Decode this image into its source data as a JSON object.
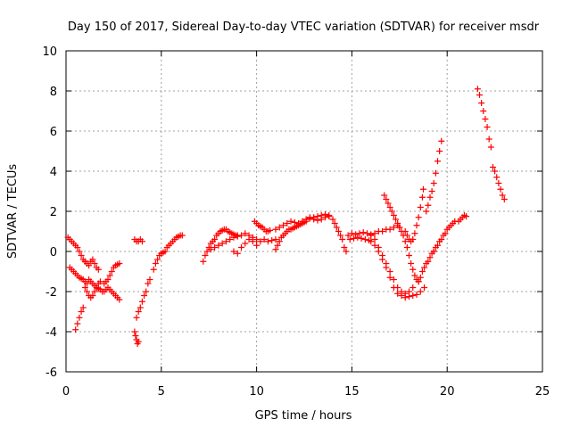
{
  "chart_data": {
    "type": "scatter",
    "title": "Day 150 of 2017, Sidereal Day-to-day VTEC variation (SDTVAR) for receiver msdr",
    "xlabel": "GPS time / hours",
    "ylabel": "SDTVAR / TECUs",
    "xlim": [
      0,
      25
    ],
    "ylim": [
      -6,
      10
    ],
    "xticks": [
      "0",
      "5",
      "10",
      "15",
      "20",
      "25"
    ],
    "yticks": [
      "-6",
      "-4",
      "-2",
      "0",
      "2",
      "4",
      "6",
      "8",
      "10"
    ],
    "grid": true,
    "marker": "plus",
    "color": "#ff0000",
    "segments": [
      [
        [
          0.1,
          0.7
        ],
        [
          0.2,
          0.6
        ],
        [
          0.3,
          0.5
        ],
        [
          0.4,
          0.4
        ],
        [
          0.5,
          0.3
        ],
        [
          0.6,
          0.2
        ],
        [
          0.7,
          0.0
        ],
        [
          0.8,
          -0.2
        ],
        [
          0.9,
          -0.4
        ],
        [
          1.0,
          -0.5
        ]
      ],
      [
        [
          0.2,
          -0.8
        ],
        [
          0.3,
          -0.9
        ],
        [
          0.4,
          -1.0
        ],
        [
          0.5,
          -1.1
        ],
        [
          0.6,
          -1.2
        ],
        [
          0.7,
          -1.3
        ],
        [
          0.8,
          -1.35
        ],
        [
          0.9,
          -1.4
        ],
        [
          1.0,
          -1.5
        ],
        [
          1.1,
          -1.6
        ]
      ],
      [
        [
          0.5,
          -3.9
        ],
        [
          0.6,
          -3.6
        ],
        [
          0.7,
          -3.3
        ],
        [
          0.8,
          -3.0
        ],
        [
          0.9,
          -2.8
        ]
      ],
      [
        [
          1.0,
          -1.8
        ],
        [
          1.1,
          -2.0
        ],
        [
          1.2,
          -2.2
        ],
        [
          1.3,
          -2.3
        ],
        [
          1.4,
          -2.2
        ],
        [
          1.5,
          -2.0
        ],
        [
          1.6,
          -1.8
        ],
        [
          1.7,
          -1.6
        ],
        [
          1.8,
          -1.5
        ]
      ],
      [
        [
          1.0,
          -0.5
        ],
        [
          1.1,
          -0.6
        ],
        [
          1.2,
          -0.7
        ],
        [
          1.3,
          -0.5
        ],
        [
          1.4,
          -0.4
        ],
        [
          1.5,
          -0.6
        ],
        [
          1.6,
          -0.8
        ],
        [
          1.7,
          -0.9
        ]
      ],
      [
        [
          1.2,
          -1.4
        ],
        [
          1.3,
          -1.5
        ],
        [
          1.4,
          -1.6
        ],
        [
          1.5,
          -1.7
        ],
        [
          1.6,
          -1.8
        ],
        [
          1.7,
          -1.85
        ],
        [
          1.8,
          -1.9
        ],
        [
          1.9,
          -2.0
        ]
      ],
      [
        [
          2.0,
          -1.6
        ],
        [
          2.1,
          -1.5
        ],
        [
          2.2,
          -1.4
        ],
        [
          2.3,
          -1.2
        ],
        [
          2.4,
          -1.0
        ],
        [
          2.5,
          -0.8
        ],
        [
          2.6,
          -0.7
        ],
        [
          2.7,
          -0.65
        ],
        [
          2.8,
          -0.6
        ]
      ],
      [
        [
          2.0,
          -2.0
        ],
        [
          2.1,
          -1.9
        ],
        [
          2.2,
          -1.8
        ],
        [
          2.3,
          -1.9
        ],
        [
          2.4,
          -2.0
        ],
        [
          2.5,
          -2.1
        ],
        [
          2.6,
          -2.2
        ],
        [
          2.7,
          -2.3
        ],
        [
          2.8,
          -2.4
        ]
      ],
      [
        [
          3.6,
          -4.0
        ],
        [
          3.65,
          -4.2
        ],
        [
          3.7,
          -4.4
        ],
        [
          3.75,
          -4.6
        ],
        [
          3.8,
          -4.5
        ]
      ],
      [
        [
          3.6,
          0.6
        ],
        [
          3.7,
          0.5
        ],
        [
          3.8,
          0.5
        ],
        [
          3.9,
          0.6
        ],
        [
          4.0,
          0.5
        ]
      ],
      [
        [
          3.7,
          -3.3
        ],
        [
          3.8,
          -3.0
        ],
        [
          3.9,
          -2.8
        ],
        [
          4.0,
          -2.5
        ],
        [
          4.1,
          -2.2
        ],
        [
          4.2,
          -2.0
        ],
        [
          4.3,
          -1.6
        ],
        [
          4.4,
          -1.4
        ]
      ],
      [
        [
          4.6,
          -0.9
        ],
        [
          4.7,
          -0.6
        ],
        [
          4.8,
          -0.4
        ],
        [
          4.9,
          -0.2
        ],
        [
          5.0,
          -0.1
        ],
        [
          5.1,
          -0.05
        ],
        [
          5.2,
          0.0
        ],
        [
          5.3,
          0.2
        ],
        [
          5.4,
          0.3
        ],
        [
          5.5,
          0.4
        ],
        [
          5.6,
          0.5
        ],
        [
          5.7,
          0.6
        ],
        [
          5.8,
          0.7
        ],
        [
          5.9,
          0.75
        ],
        [
          6.0,
          0.8
        ],
        [
          6.1,
          0.8
        ]
      ],
      [
        [
          7.2,
          -0.5
        ],
        [
          7.3,
          -0.2
        ],
        [
          7.4,
          0.0
        ],
        [
          7.5,
          0.2
        ],
        [
          7.6,
          0.4
        ],
        [
          7.7,
          0.5
        ],
        [
          7.8,
          0.6
        ],
        [
          7.9,
          0.8
        ],
        [
          8.0,
          0.9
        ],
        [
          8.1,
          1.0
        ],
        [
          8.2,
          1.05
        ],
        [
          8.3,
          1.1
        ],
        [
          8.4,
          1.1
        ],
        [
          8.5,
          1.0
        ],
        [
          8.6,
          0.95
        ],
        [
          8.7,
          0.9
        ],
        [
          8.8,
          0.85
        ],
        [
          8.9,
          0.8
        ],
        [
          9.0,
          0.8
        ]
      ],
      [
        [
          7.6,
          0.1
        ],
        [
          7.8,
          0.2
        ],
        [
          8.0,
          0.3
        ],
        [
          8.2,
          0.4
        ],
        [
          8.4,
          0.5
        ],
        [
          8.6,
          0.6
        ],
        [
          8.8,
          0.7
        ],
        [
          9.0,
          0.75
        ],
        [
          9.2,
          0.8
        ],
        [
          9.4,
          0.9
        ],
        [
          9.6,
          0.8
        ],
        [
          9.8,
          0.7
        ],
        [
          10.0,
          0.6
        ],
        [
          10.2,
          0.5
        ],
        [
          10.4,
          0.6
        ],
        [
          10.6,
          0.5
        ],
        [
          10.8,
          0.55
        ],
        [
          11.0,
          0.6
        ]
      ],
      [
        [
          8.8,
          0.0
        ],
        [
          9.0,
          -0.1
        ],
        [
          9.2,
          0.2
        ],
        [
          9.4,
          0.4
        ],
        [
          9.6,
          0.6
        ],
        [
          9.8,
          0.5
        ],
        [
          10.0,
          0.3
        ]
      ],
      [
        [
          9.9,
          1.5
        ],
        [
          10.0,
          1.4
        ],
        [
          10.1,
          1.3
        ],
        [
          10.2,
          1.25
        ],
        [
          10.3,
          1.2
        ],
        [
          10.4,
          1.1
        ],
        [
          10.5,
          1.0
        ],
        [
          10.6,
          1.0
        ],
        [
          10.7,
          1.05
        ]
      ],
      [
        [
          11.0,
          0.1
        ],
        [
          11.1,
          0.3
        ],
        [
          11.2,
          0.5
        ],
        [
          11.3,
          0.7
        ],
        [
          11.4,
          0.8
        ],
        [
          11.5,
          0.9
        ],
        [
          11.6,
          1.0
        ],
        [
          11.7,
          1.1
        ],
        [
          11.8,
          1.1
        ],
        [
          11.9,
          1.15
        ],
        [
          12.0,
          1.2
        ],
        [
          12.1,
          1.25
        ],
        [
          12.2,
          1.3
        ],
        [
          12.3,
          1.35
        ],
        [
          12.4,
          1.4
        ],
        [
          12.5,
          1.45
        ],
        [
          12.6,
          1.5
        ]
      ],
      [
        [
          11.0,
          1.1
        ],
        [
          11.2,
          1.2
        ],
        [
          11.4,
          1.3
        ],
        [
          11.6,
          1.4
        ],
        [
          11.8,
          1.5
        ],
        [
          12.0,
          1.45
        ],
        [
          12.2,
          1.4
        ],
        [
          12.4,
          1.5
        ],
        [
          12.6,
          1.6
        ],
        [
          12.8,
          1.7
        ],
        [
          13.0,
          1.7
        ],
        [
          13.2,
          1.75
        ],
        [
          13.4,
          1.8
        ],
        [
          13.6,
          1.85
        ],
        [
          13.8,
          1.8
        ],
        [
          14.0,
          1.6
        ],
        [
          14.1,
          1.4
        ],
        [
          14.2,
          1.2
        ],
        [
          14.3,
          1.0
        ],
        [
          14.4,
          0.8
        ],
        [
          14.5,
          0.6
        ],
        [
          14.6,
          0.2
        ],
        [
          14.7,
          0.0
        ]
      ],
      [
        [
          12.6,
          1.6
        ],
        [
          12.8,
          1.65
        ],
        [
          13.0,
          1.6
        ],
        [
          13.2,
          1.55
        ],
        [
          13.4,
          1.6
        ],
        [
          13.6,
          1.7
        ],
        [
          13.8,
          1.75
        ]
      ],
      [
        [
          14.8,
          0.8
        ],
        [
          15.0,
          0.9
        ],
        [
          15.2,
          0.85
        ],
        [
          15.4,
          0.9
        ],
        [
          15.6,
          0.95
        ],
        [
          15.8,
          0.9
        ],
        [
          16.0,
          0.85
        ],
        [
          16.2,
          0.9
        ],
        [
          16.4,
          1.0
        ],
        [
          16.6,
          1.0
        ],
        [
          16.8,
          1.1
        ],
        [
          17.0,
          1.1
        ],
        [
          17.2,
          1.2
        ],
        [
          17.4,
          1.3
        ],
        [
          17.5,
          1.2
        ]
      ],
      [
        [
          14.9,
          0.6
        ],
        [
          15.1,
          0.65
        ],
        [
          15.3,
          0.7
        ],
        [
          15.5,
          0.65
        ],
        [
          15.7,
          0.6
        ],
        [
          15.9,
          0.55
        ],
        [
          16.0,
          0.5
        ],
        [
          16.2,
          0.3
        ],
        [
          16.4,
          0.0
        ],
        [
          16.6,
          -0.4
        ],
        [
          16.8,
          -0.8
        ],
        [
          17.0,
          -1.3
        ],
        [
          17.2,
          -1.8
        ],
        [
          17.4,
          -2.1
        ],
        [
          17.6,
          -2.2
        ],
        [
          17.8,
          -2.3
        ],
        [
          18.0,
          -2.25
        ],
        [
          18.2,
          -2.2
        ],
        [
          18.4,
          -2.15
        ],
        [
          18.6,
          -2.0
        ],
        [
          18.8,
          -1.8
        ]
      ],
      [
        [
          16.0,
          0.8
        ],
        [
          16.2,
          0.6
        ],
        [
          16.4,
          0.2
        ],
        [
          16.6,
          -0.2
        ],
        [
          16.8,
          -0.6
        ],
        [
          17.0,
          -1.0
        ],
        [
          17.2,
          -1.4
        ],
        [
          17.4,
          -1.8
        ],
        [
          17.6,
          -2.0
        ],
        [
          17.8,
          -2.1
        ],
        [
          18.0,
          -2.0
        ],
        [
          18.2,
          -1.8
        ]
      ],
      [
        [
          16.7,
          2.8
        ],
        [
          16.8,
          2.6
        ],
        [
          16.9,
          2.4
        ],
        [
          17.0,
          2.2
        ],
        [
          17.1,
          2.0
        ],
        [
          17.2,
          1.8
        ],
        [
          17.3,
          1.6
        ],
        [
          17.4,
          1.4
        ],
        [
          17.5,
          1.2
        ],
        [
          17.6,
          1.0
        ],
        [
          17.7,
          0.8
        ],
        [
          17.8,
          0.5
        ],
        [
          17.9,
          0.2
        ],
        [
          18.0,
          -0.2
        ],
        [
          18.1,
          -0.6
        ],
        [
          18.2,
          -0.9
        ],
        [
          18.3,
          -1.2
        ],
        [
          18.4,
          -1.4
        ],
        [
          18.5,
          -1.5
        ]
      ],
      [
        [
          17.8,
          1.0
        ],
        [
          17.9,
          0.8
        ],
        [
          18.0,
          0.6
        ],
        [
          18.1,
          0.5
        ],
        [
          18.2,
          0.6
        ],
        [
          18.3,
          0.9
        ],
        [
          18.4,
          1.3
        ],
        [
          18.5,
          1.7
        ],
        [
          18.6,
          2.2
        ],
        [
          18.7,
          2.7
        ],
        [
          18.75,
          3.1
        ]
      ],
      [
        [
          18.5,
          -1.5
        ],
        [
          18.6,
          -1.3
        ],
        [
          18.7,
          -1.0
        ],
        [
          18.8,
          -0.8
        ],
        [
          18.9,
          -0.6
        ],
        [
          19.0,
          -0.5
        ],
        [
          19.1,
          -0.3
        ],
        [
          19.2,
          -0.1
        ],
        [
          19.3,
          0.0
        ]
      ],
      [
        [
          18.9,
          2.0
        ],
        [
          19.0,
          2.3
        ],
        [
          19.1,
          2.7
        ],
        [
          19.2,
          3.0
        ],
        [
          19.3,
          3.4
        ],
        [
          19.4,
          3.9
        ],
        [
          19.5,
          4.5
        ],
        [
          19.6,
          5.0
        ],
        [
          19.7,
          5.5
        ]
      ],
      [
        [
          19.3,
          0.0
        ],
        [
          19.4,
          0.2
        ],
        [
          19.5,
          0.3
        ],
        [
          19.6,
          0.5
        ],
        [
          19.7,
          0.6
        ],
        [
          19.8,
          0.8
        ],
        [
          19.9,
          0.9
        ],
        [
          20.0,
          1.1
        ],
        [
          20.1,
          1.2
        ],
        [
          20.2,
          1.3
        ],
        [
          20.3,
          1.4
        ],
        [
          20.4,
          1.5
        ]
      ],
      [
        [
          20.6,
          1.5
        ],
        [
          20.7,
          1.6
        ],
        [
          20.8,
          1.7
        ],
        [
          20.9,
          1.8
        ],
        [
          21.0,
          1.75
        ]
      ],
      [
        [
          21.6,
          8.1
        ],
        [
          21.7,
          7.8
        ],
        [
          21.8,
          7.4
        ],
        [
          21.9,
          7.0
        ],
        [
          22.0,
          6.6
        ],
        [
          22.1,
          6.2
        ],
        [
          22.2,
          5.6
        ],
        [
          22.3,
          5.2
        ]
      ],
      [
        [
          22.4,
          4.2
        ],
        [
          22.5,
          4.0
        ],
        [
          22.6,
          3.7
        ],
        [
          22.7,
          3.4
        ],
        [
          22.8,
          3.1
        ],
        [
          22.9,
          2.8
        ],
        [
          23.0,
          2.6
        ]
      ]
    ]
  }
}
